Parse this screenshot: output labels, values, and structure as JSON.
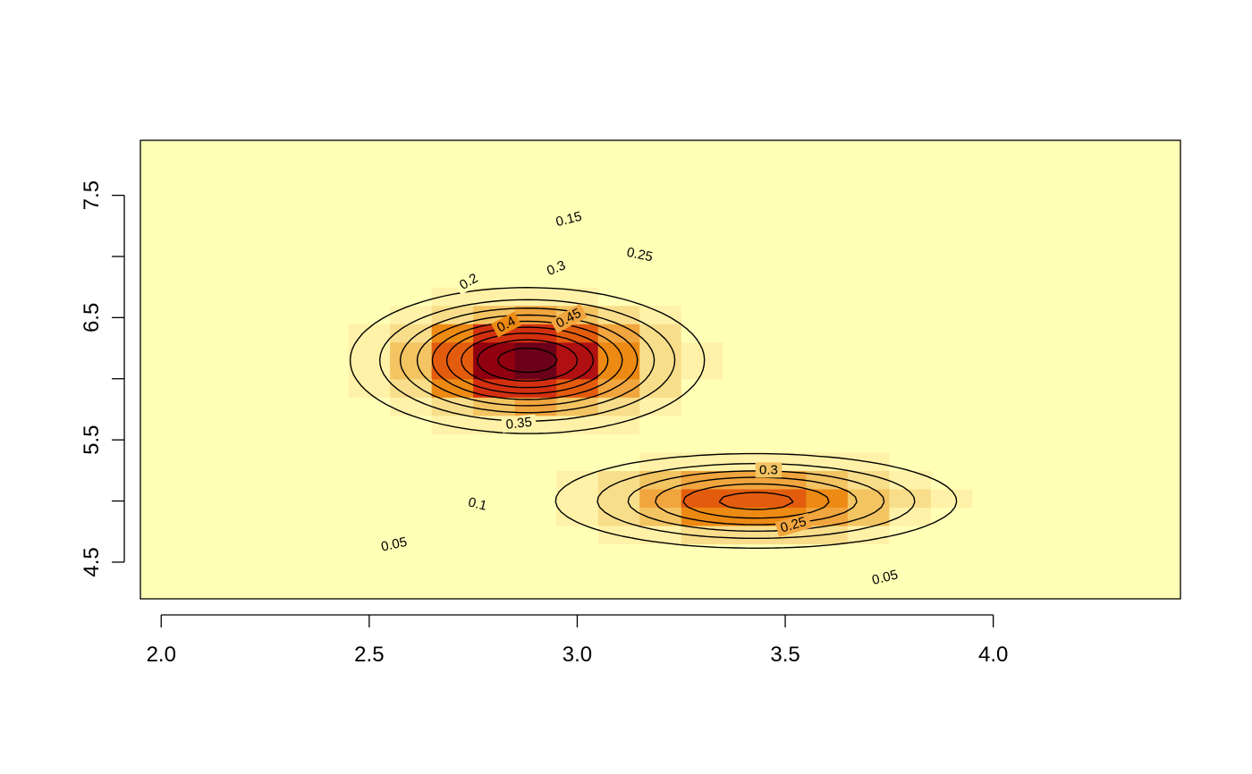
{
  "chart_data": {
    "type": "heatmap",
    "title": "",
    "xlabel": "",
    "ylabel": "",
    "xlim": [
      1.95,
      4.45
    ],
    "ylim": [
      4.2,
      7.95
    ],
    "x_ticks": [
      2.0,
      2.5,
      3.0,
      3.5,
      4.0
    ],
    "x_tick_labels": [
      "2.0",
      "2.5",
      "3.0",
      "3.5",
      "4.0"
    ],
    "y_ticks": [
      4.5,
      5.0,
      5.5,
      6.0,
      6.5,
      7.0,
      7.5
    ],
    "y_tick_labels": [
      "4.5",
      "",
      "5.5",
      "",
      "6.5",
      "",
      "7.5"
    ],
    "grid": false,
    "legend": "none",
    "color_scale": [
      "#FFFFB6",
      "#FFF2A8",
      "#F8DE8A",
      "#F3C462",
      "#F1A53E",
      "#EC8A14",
      "#E35C0E",
      "#D33010",
      "#B01012",
      "#90000F",
      "#6D0019"
    ],
    "density_peaks": [
      {
        "x": 2.88,
        "y": 6.15,
        "height": 0.48,
        "sx": 0.2,
        "sy": 0.28
      },
      {
        "x": 3.43,
        "y": 5.0,
        "height": 0.32,
        "sx": 0.25,
        "sy": 0.2
      }
    ],
    "contour_levels": [
      0.05,
      0.1,
      0.15,
      0.2,
      0.25,
      0.3,
      0.35,
      0.4,
      0.45
    ],
    "contour_labels": [
      {
        "text": "0.05",
        "x": 2.56,
        "y": 4.64,
        "angle": -12
      },
      {
        "text": "0.1",
        "x": 2.76,
        "y": 4.97,
        "angle": 14
      },
      {
        "text": "0.15",
        "x": 2.98,
        "y": 7.3,
        "angle": -14
      },
      {
        "text": "0.2",
        "x": 2.74,
        "y": 6.79,
        "angle": -30
      },
      {
        "text": "0.25",
        "x": 3.15,
        "y": 7.01,
        "angle": 12
      },
      {
        "text": "0.3",
        "x": 2.95,
        "y": 6.9,
        "angle": -22
      },
      {
        "text": "0.35",
        "x": 2.86,
        "y": 5.63,
        "angle": -6
      },
      {
        "text": "0.4",
        "x": 2.83,
        "y": 6.44,
        "angle": -28
      },
      {
        "text": "0.45",
        "x": 2.98,
        "y": 6.49,
        "angle": -28
      },
      {
        "text": "0.3",
        "x": 3.46,
        "y": 5.25,
        "angle": 0
      },
      {
        "text": "0.25",
        "x": 3.52,
        "y": 4.8,
        "angle": -16
      },
      {
        "text": "0.05",
        "x": 3.74,
        "y": 4.37,
        "angle": -14
      }
    ]
  }
}
